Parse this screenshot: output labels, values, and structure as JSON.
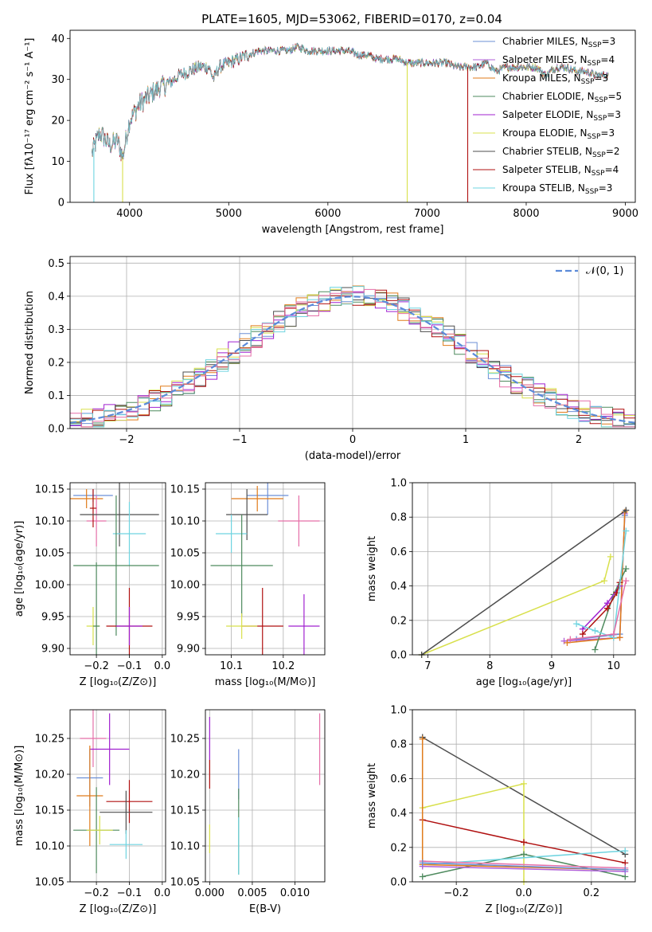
{
  "figure": {
    "title": "PLATE=1605, MJD=53062, FIBERID=0170, z=0.04"
  },
  "colors": {
    "Chabrier MILES": "#6b8fd6",
    "Salpeter MILES": "#b05fd8",
    "Kroupa MILES": "#e07b1a",
    "Chabrier ELODIE": "#4e8a5e",
    "Salpeter ELODIE": "#a020d0",
    "Kroupa ELODIE": "#d8e04c",
    "Chabrier STELIB": "#4d4d4d",
    "Salpeter STELIB": "#b01010",
    "Kroupa STELIB": "#6fd4e0",
    "Pink": "#e56fa8",
    "Normal": "#5b8bd9"
  },
  "chart_data": [
    {
      "id": "spectrum",
      "type": "line",
      "title": "PLATE=1605, MJD=53062, FIBERID=0170, z=0.04",
      "xlabel": "wavelength [Angstrom, rest frame]",
      "ylabel": "Flux [fλ10⁻¹⁷ erg cm⁻² s⁻¹ A⁻¹]",
      "xlim": [
        3400,
        9100
      ],
      "ylim": [
        0,
        42
      ],
      "xticks": [
        4000,
        5000,
        6000,
        7000,
        8000,
        9000
      ],
      "yticks": [
        0,
        10,
        20,
        30,
        40
      ],
      "grid": false,
      "legend_placement": "top-right",
      "x": [
        3620,
        3700,
        3800,
        3880,
        3930,
        4000,
        4100,
        4200,
        4300,
        4400,
        4500,
        4600,
        4700,
        4800,
        4850,
        4900,
        5000,
        5100,
        5200,
        5300,
        5400,
        5500,
        5600,
        5700,
        5800,
        5900,
        6000,
        6100,
        6200,
        6300,
        6400,
        6500,
        6600,
        6700,
        6800,
        6900,
        7000,
        7100,
        7200,
        7300,
        7400,
        7500,
        7600,
        7700,
        7800,
        7900,
        8000,
        8100,
        8200,
        8300,
        8400,
        8500,
        8600,
        8700,
        8830
      ],
      "y": [
        12,
        17,
        14,
        15,
        11,
        20,
        24,
        26,
        28,
        29,
        31,
        32,
        33,
        33,
        30,
        33,
        34,
        35,
        36,
        37,
        37,
        37,
        37,
        38,
        37,
        37,
        37,
        37,
        37,
        36,
        36,
        35,
        35,
        35,
        34,
        34,
        34,
        34,
        34,
        33,
        33,
        33,
        34,
        32,
        33,
        33,
        33,
        33,
        31,
        33,
        33,
        32,
        32,
        31,
        31
      ],
      "series": [
        {
          "name": "Chabrier MILES, N_SSP=3",
          "label_main": "Chabrier MILES, N",
          "label_sub": "SSP",
          "label_tail": "=3",
          "color_key": "Chabrier MILES"
        },
        {
          "name": "Salpeter MILES, N_SSP=4",
          "label_main": "Salpeter MILES, N",
          "label_sub": "SSP",
          "label_tail": "=4",
          "color_key": "Salpeter MILES"
        },
        {
          "name": "Kroupa MILES, N_SSP=3",
          "label_main": "Kroupa MILES, N",
          "label_sub": "SSP",
          "label_tail": "=3",
          "color_key": "Kroupa MILES"
        },
        {
          "name": "Chabrier ELODIE, N_SSP=5",
          "label_main": "Chabrier ELODIE, N",
          "label_sub": "SSP",
          "label_tail": "=5",
          "color_key": "Chabrier ELODIE"
        },
        {
          "name": "Salpeter ELODIE, N_SSP=3",
          "label_main": "Salpeter ELODIE, N",
          "label_sub": "SSP",
          "label_tail": "=3",
          "color_key": "Salpeter ELODIE"
        },
        {
          "name": "Kroupa ELODIE, N_SSP=3",
          "label_main": "Kroupa ELODIE, N",
          "label_sub": "SSP",
          "label_tail": "=3",
          "color_key": "Kroupa ELODIE"
        },
        {
          "name": "Chabrier STELIB, N_SSP=2",
          "label_main": "Chabrier STELIB, N",
          "label_sub": "SSP",
          "label_tail": "=2",
          "color_key": "Chabrier STELIB"
        },
        {
          "name": "Salpeter STELIB, N_SSP=4",
          "label_main": "Salpeter STELIB, N",
          "label_sub": "SSP",
          "label_tail": "=4",
          "color_key": "Salpeter STELIB"
        },
        {
          "name": "Kroupa STELIB, N_SSP=3",
          "label_main": "Kroupa STELIB, N",
          "label_sub": "SSP",
          "label_tail": "=3",
          "color_key": "Kroupa STELIB"
        }
      ],
      "drops": [
        {
          "x": 3640,
          "color_key": "Kroupa STELIB"
        },
        {
          "x": 3930,
          "color_key": "Kroupa ELODIE"
        },
        {
          "x": 6800,
          "color_key": "Kroupa ELODIE"
        },
        {
          "x": 7410,
          "color_key": "Salpeter STELIB"
        }
      ]
    },
    {
      "id": "residuals",
      "type": "line",
      "xlabel": "(data-model)/error",
      "ylabel": "Normed distribution",
      "xlim": [
        -2.5,
        2.5
      ],
      "ylim": [
        0,
        0.52
      ],
      "xticks": [
        -2,
        -1,
        0,
        1,
        2
      ],
      "yticks": [
        0.0,
        0.1,
        0.2,
        0.3,
        0.4,
        0.5
      ],
      "grid": true,
      "legend_placement": "top-right",
      "legend_label": "𝒩(0, 1)",
      "normal": {
        "mean": 0,
        "sigma": 1
      },
      "bin_width": 0.1
    },
    {
      "id": "age_vs_z",
      "type": "scatter",
      "xlabel": "Z [log₁₀(Z/Z⊙)]",
      "ylabel": "age  [log₁₀(age/yr)]",
      "xlim": [
        -0.28,
        0.01
      ],
      "ylim": [
        9.89,
        10.16
      ],
      "xticks": [
        -0.2,
        -0.1,
        0.0
      ],
      "yticks": [
        9.9,
        9.95,
        10.0,
        10.05,
        10.1,
        10.15
      ],
      "grid": true,
      "points": [
        {
          "x": -0.21,
          "y": 10.14,
          "xerr": 0.06,
          "yerr": 0.01,
          "color_key": "Chabrier MILES"
        },
        {
          "x": -0.23,
          "y": 10.135,
          "xerr": 0.05,
          "yerr": 0.015,
          "color_key": "Kroupa MILES"
        },
        {
          "x": -0.2,
          "y": 10.1,
          "xerr": 0.03,
          "yerr": 0.04,
          "color_key": "Pink"
        },
        {
          "x": -0.21,
          "y": 10.12,
          "xerr": 0.01,
          "yerr": 0.03,
          "color_key": "Salpeter STELIB"
        },
        {
          "x": -0.13,
          "y": 10.11,
          "xerr": 0.12,
          "yerr": 0.05,
          "color_key": "Chabrier STELIB"
        },
        {
          "x": -0.1,
          "y": 10.08,
          "xerr": 0.05,
          "yerr": 0.05,
          "color_key": "Kroupa STELIB"
        },
        {
          "x": -0.14,
          "y": 10.03,
          "xerr": 0.13,
          "yerr": 0.11,
          "color_key": "Chabrier ELODIE"
        },
        {
          "x": -0.1,
          "y": 9.935,
          "xerr": 0.07,
          "yerr": 0.06,
          "color_key": "Salpeter STELIB"
        },
        {
          "x": -0.1,
          "y": 9.935,
          "xerr": 0.04,
          "yerr": 0.03,
          "color_key": "Salpeter ELODIE"
        },
        {
          "x": -0.21,
          "y": 9.935,
          "xerr": 0.02,
          "yerr": 0.03,
          "color_key": "Kroupa ELODIE"
        },
        {
          "x": -0.2,
          "y": 9.935,
          "xerr": 0.01,
          "yerr": 0.1,
          "color_key": "Chabrier ELODIE"
        }
      ]
    },
    {
      "id": "age_vs_mass",
      "type": "scatter",
      "xlabel": "mass [log₁₀(M/M⊙)]",
      "xlim": [
        10.05,
        10.28
      ],
      "ylim": [
        9.89,
        10.16
      ],
      "xticks": [
        10.1,
        10.2
      ],
      "yticks": [
        9.9,
        9.95,
        10.0,
        10.05,
        10.1,
        10.15
      ],
      "grid": true,
      "points": [
        {
          "x": 10.17,
          "y": 10.14,
          "xerr": 0.04,
          "yerr": 0.03,
          "color_key": "Chabrier MILES"
        },
        {
          "x": 10.15,
          "y": 10.135,
          "xerr": 0.05,
          "yerr": 0.02,
          "color_key": "Kroupa MILES"
        },
        {
          "x": 10.23,
          "y": 10.1,
          "xerr": 0.04,
          "yerr": 0.04,
          "color_key": "Pink"
        },
        {
          "x": 10.13,
          "y": 10.11,
          "xerr": 0.04,
          "yerr": 0.04,
          "color_key": "Chabrier STELIB"
        },
        {
          "x": 10.1,
          "y": 10.08,
          "xerr": 0.03,
          "yerr": 0.03,
          "color_key": "Kroupa STELIB"
        },
        {
          "x": 10.12,
          "y": 10.03,
          "xerr": 0.06,
          "yerr": 0.08,
          "color_key": "Chabrier ELODIE"
        },
        {
          "x": 10.16,
          "y": 9.935,
          "xerr": 0.04,
          "yerr": 0.06,
          "color_key": "Salpeter STELIB"
        },
        {
          "x": 10.24,
          "y": 9.935,
          "xerr": 0.03,
          "yerr": 0.05,
          "color_key": "Salpeter ELODIE"
        },
        {
          "x": 10.12,
          "y": 9.935,
          "xerr": 0.03,
          "yerr": 0.02,
          "color_key": "Kroupa ELODIE"
        }
      ]
    },
    {
      "id": "weight_vs_age",
      "type": "line",
      "xlabel": "age  [log₁₀(age/yr)]",
      "ylabel": "mass weight",
      "xlim": [
        6.75,
        10.35
      ],
      "ylim": [
        0,
        1
      ],
      "xticks": [
        7,
        8,
        9,
        10
      ],
      "yticks": [
        0.0,
        0.2,
        0.4,
        0.6,
        0.8,
        1.0
      ],
      "grid": true,
      "series": [
        {
          "color_key": "Chabrier MILES",
          "x": [
            9.4,
            10.1,
            10.18
          ],
          "y": [
            0.09,
            0.12,
            0.81
          ]
        },
        {
          "color_key": "Salpeter MILES",
          "x": [
            9.2,
            10.1,
            10.18
          ],
          "y": [
            0.08,
            0.1,
            0.82
          ]
        },
        {
          "color_key": "Kroupa MILES",
          "x": [
            9.25,
            10.1,
            10.18
          ],
          "y": [
            0.07,
            0.1,
            0.83
          ]
        },
        {
          "color_key": "Chabrier ELODIE",
          "x": [
            9.7,
            10.0,
            10.2
          ],
          "y": [
            0.03,
            0.35,
            0.5
          ]
        },
        {
          "color_key": "Salpeter ELODIE",
          "x": [
            9.5,
            9.9,
            10.1
          ],
          "y": [
            0.15,
            0.3,
            0.4
          ]
        },
        {
          "color_key": "Kroupa ELODIE",
          "x": [
            6.9,
            9.85,
            9.95
          ],
          "y": [
            0.0,
            0.43,
            0.57
          ]
        },
        {
          "color_key": "Chabrier STELIB",
          "x": [
            6.9,
            10.2
          ],
          "y": [
            0.0,
            0.84
          ]
        },
        {
          "color_key": "Salpeter STELIB",
          "x": [
            9.5,
            9.9,
            10.05,
            10.1
          ],
          "y": [
            0.12,
            0.27,
            0.36,
            0.42
          ]
        },
        {
          "color_key": "Kroupa STELIB",
          "x": [
            9.4,
            9.7,
            10.0,
            10.2
          ],
          "y": [
            0.18,
            0.14,
            0.1,
            0.72
          ]
        },
        {
          "color_key": "Pink",
          "x": [
            9.3,
            10.0,
            10.2
          ],
          "y": [
            0.09,
            0.12,
            0.43
          ]
        }
      ]
    },
    {
      "id": "mass_vs_z",
      "type": "scatter",
      "xlabel": "Z [log₁₀(Z/Z⊙)]",
      "ylabel": "mass [log₁₀(M/M⊙)]",
      "xlim": [
        -0.28,
        0.01
      ],
      "ylim": [
        10.05,
        10.29
      ],
      "xticks": [
        -0.2,
        -0.1,
        0.0
      ],
      "yticks": [
        10.05,
        10.1,
        10.15,
        10.2,
        10.25
      ],
      "grid": true,
      "points": [
        {
          "x": -0.21,
          "y": 10.25,
          "xerr": 0.04,
          "yerr": 0.04,
          "color_key": "Pink"
        },
        {
          "x": -0.16,
          "y": 10.235,
          "xerr": 0.06,
          "yerr": 0.05,
          "color_key": "Salpeter ELODIE"
        },
        {
          "x": -0.22,
          "y": 10.195,
          "xerr": 0.04,
          "yerr": 0.04,
          "color_key": "Chabrier MILES"
        },
        {
          "x": -0.22,
          "y": 10.17,
          "xerr": 0.04,
          "yerr": 0.07,
          "color_key": "Kroupa MILES"
        },
        {
          "x": -0.1,
          "y": 10.162,
          "xerr": 0.07,
          "yerr": 0.03,
          "color_key": "Salpeter STELIB"
        },
        {
          "x": -0.11,
          "y": 10.147,
          "xerr": 0.08,
          "yerr": 0.03,
          "color_key": "Chabrier STELIB"
        },
        {
          "x": -0.2,
          "y": 10.122,
          "xerr": 0.07,
          "yerr": 0.06,
          "color_key": "Chabrier ELODIE"
        },
        {
          "x": -0.11,
          "y": 10.102,
          "xerr": 0.05,
          "yerr": 0.02,
          "color_key": "Kroupa STELIB"
        },
        {
          "x": -0.19,
          "y": 10.122,
          "xerr": 0.04,
          "yerr": 0.02,
          "color_key": "Kroupa ELODIE"
        }
      ]
    },
    {
      "id": "mass_vs_ebv",
      "type": "scatter",
      "xlabel": "E(B-V)",
      "xlim": [
        -0.0005,
        0.0135
      ],
      "ylim": [
        10.05,
        10.29
      ],
      "xticks": [
        0.0,
        0.005,
        0.01
      ],
      "yticks": [
        10.05,
        10.1,
        10.15,
        10.2,
        10.25
      ],
      "grid": true,
      "points": [
        {
          "x": 0.0,
          "y": 10.25,
          "yerr": 0.03,
          "color_key": "Salpeter ELODIE"
        },
        {
          "x": 0.0,
          "y": 10.2,
          "yerr": 0.02,
          "color_key": "Salpeter STELIB"
        },
        {
          "x": 0.0,
          "y": 10.11,
          "yerr": 0.02,
          "color_key": "Kroupa ELODIE"
        },
        {
          "x": 0.0034,
          "y": 10.2,
          "yerr": 0.035,
          "color_key": "Chabrier MILES"
        },
        {
          "x": 0.0034,
          "y": 10.12,
          "yerr": 0.06,
          "color_key": "Chabrier ELODIE"
        },
        {
          "x": 0.0034,
          "y": 10.1,
          "yerr": 0.04,
          "color_key": "Kroupa STELIB"
        },
        {
          "x": 0.0129,
          "y": 10.235,
          "yerr": 0.05,
          "color_key": "Pink"
        }
      ]
    },
    {
      "id": "weight_vs_z",
      "type": "line",
      "xlabel": "Z [log₁₀(Z/Z⊙)]",
      "ylabel": "mass weight",
      "xlim": [
        -0.33,
        0.33
      ],
      "ylim": [
        0,
        1
      ],
      "xticks": [
        -0.2,
        0.0,
        0.2
      ],
      "yticks": [
        0.0,
        0.2,
        0.4,
        0.6,
        0.8,
        1.0
      ],
      "grid": true,
      "series": [
        {
          "color_key": "Chabrier STELIB",
          "x": [
            -0.3,
            0.3
          ],
          "y": [
            0.84,
            0.16
          ]
        },
        {
          "color_key": "Kroupa ELODIE",
          "x": [
            -0.3,
            0.0,
            0.0
          ],
          "y": [
            0.43,
            0.57,
            0.0
          ]
        },
        {
          "color_key": "Salpeter STELIB",
          "x": [
            -0.3,
            0.0,
            0.3
          ],
          "y": [
            0.36,
            0.23,
            0.11
          ]
        },
        {
          "color_key": "Chabrier ELODIE",
          "x": [
            -0.3,
            0.0,
            0.3
          ],
          "y": [
            0.03,
            0.16,
            0.03
          ]
        },
        {
          "color_key": "Kroupa STELIB",
          "x": [
            -0.3,
            0.3
          ],
          "y": [
            0.1,
            0.18
          ]
        },
        {
          "color_key": "Pink",
          "x": [
            -0.3,
            0.3
          ],
          "y": [
            0.12,
            0.08
          ]
        },
        {
          "color_key": "Kroupa MILES",
          "x": [
            -0.3,
            -0.3,
            0.3
          ],
          "y": [
            0.83,
            0.1,
            0.07
          ]
        },
        {
          "color_key": "Salpeter MILES",
          "x": [
            -0.3,
            0.3
          ],
          "y": [
            0.09,
            0.06
          ]
        },
        {
          "color_key": "Chabrier MILES",
          "x": [
            -0.3,
            0.3
          ],
          "y": [
            0.11,
            0.07
          ]
        }
      ]
    }
  ]
}
